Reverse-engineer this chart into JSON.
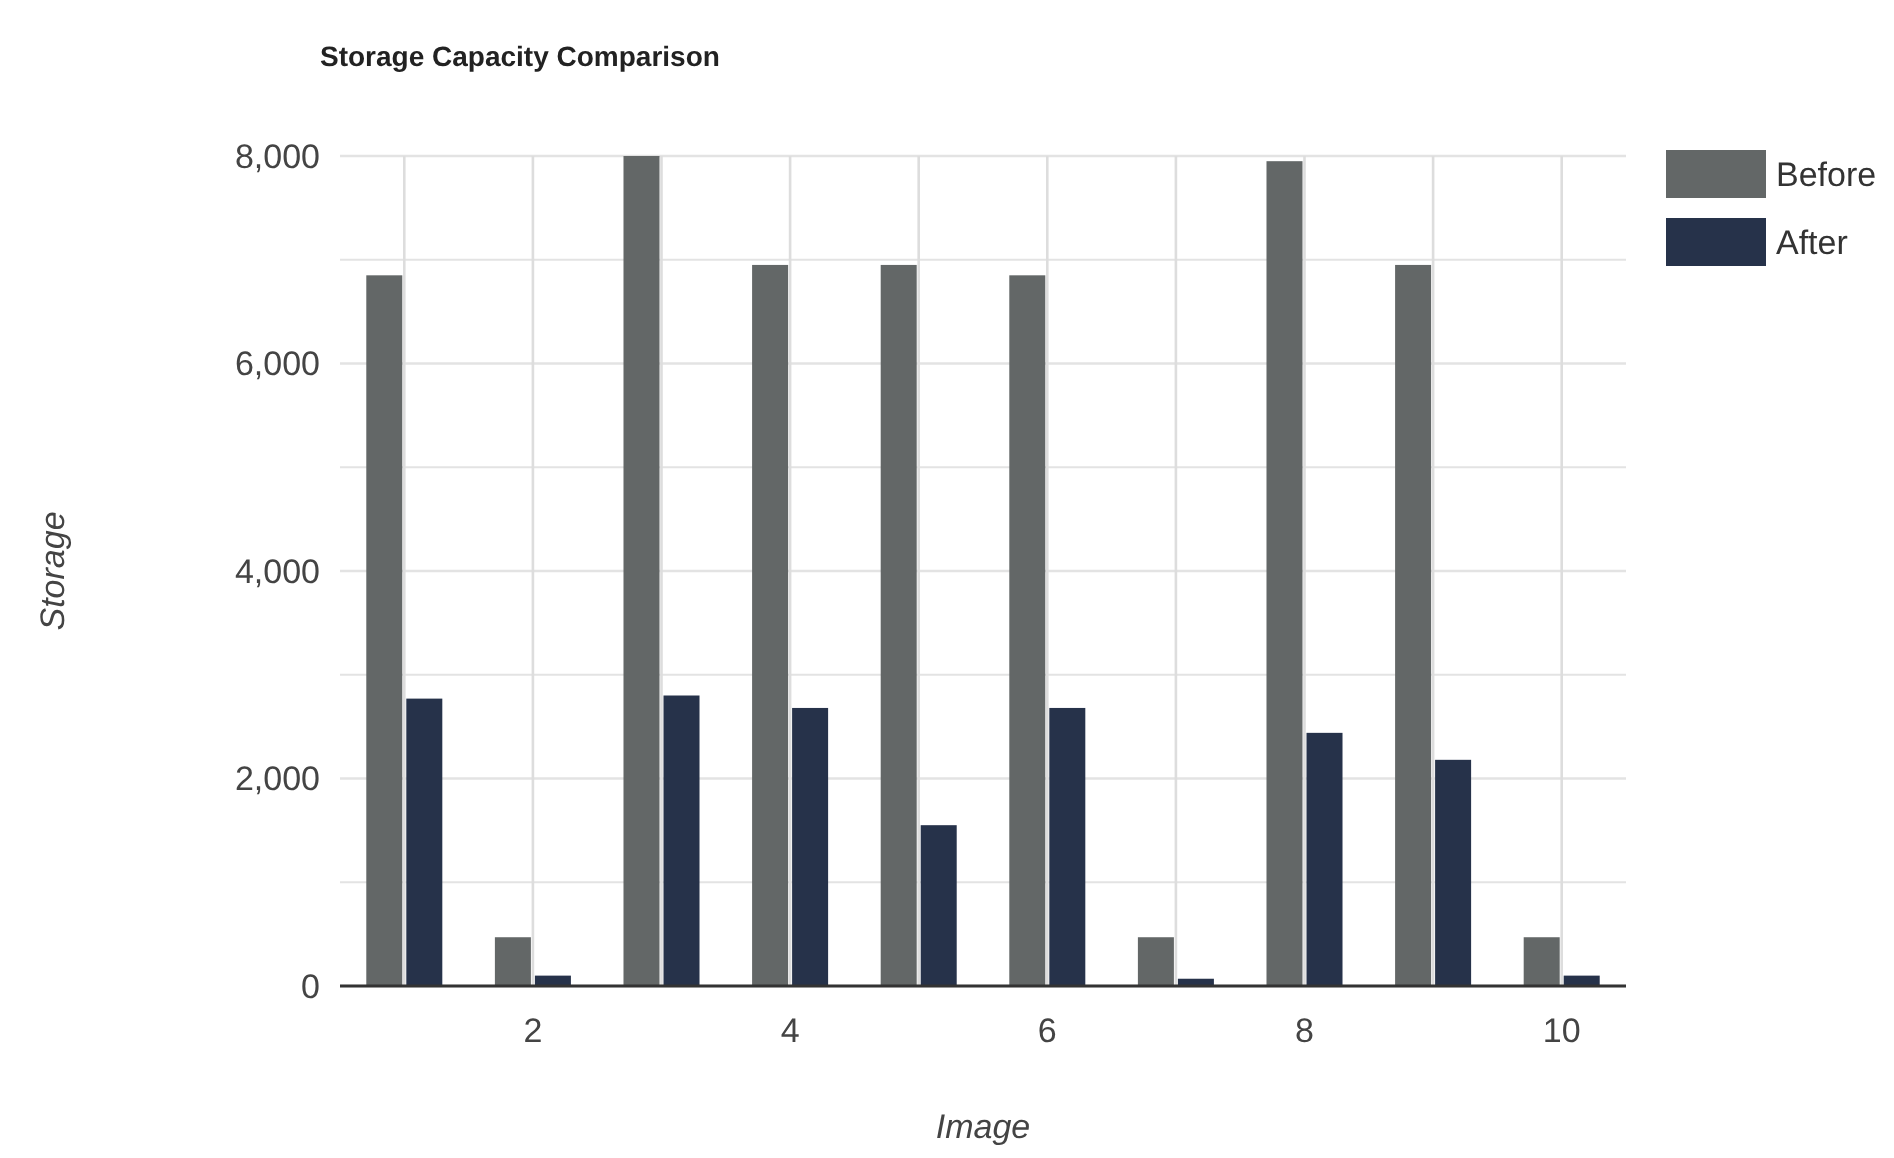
{
  "chart_data": {
    "type": "bar",
    "title": "Storage Capacity Comparison",
    "xlabel": "Image",
    "ylabel": "Storage",
    "x": [
      1,
      2,
      3,
      4,
      5,
      6,
      7,
      8,
      9,
      10
    ],
    "series": [
      {
        "name": "Before",
        "color": "#636767",
        "values": [
          6850,
          470,
          8000,
          6950,
          6950,
          6850,
          470,
          7950,
          6950,
          470
        ]
      },
      {
        "name": "After",
        "color": "#26324a",
        "values": [
          2770,
          100,
          2800,
          2680,
          1550,
          2680,
          70,
          2440,
          2180,
          100
        ]
      }
    ],
    "xlim": [
      0.5,
      10.5
    ],
    "xticks": [
      {
        "value": 1,
        "label": null
      },
      2,
      {
        "value": 3,
        "label": null
      },
      4,
      {
        "value": 5,
        "label": null
      },
      6,
      {
        "value": 7,
        "label": null
      },
      8,
      {
        "value": 9,
        "label": null
      },
      10
    ],
    "ylim": [
      0,
      8000
    ],
    "yticks": [
      {
        "value": 0,
        "label": "0"
      },
      {
        "value": 1000,
        "label": null
      },
      {
        "value": 2000,
        "label": "2,000"
      },
      {
        "value": 3000,
        "label": null
      },
      {
        "value": 4000,
        "label": "4,000"
      },
      {
        "value": 5000,
        "label": null
      },
      {
        "value": 6000,
        "label": "6,000"
      },
      {
        "value": 7000,
        "label": null
      },
      {
        "value": 8000,
        "label": "8,000"
      }
    ],
    "grid": true,
    "legend": "top right"
  }
}
